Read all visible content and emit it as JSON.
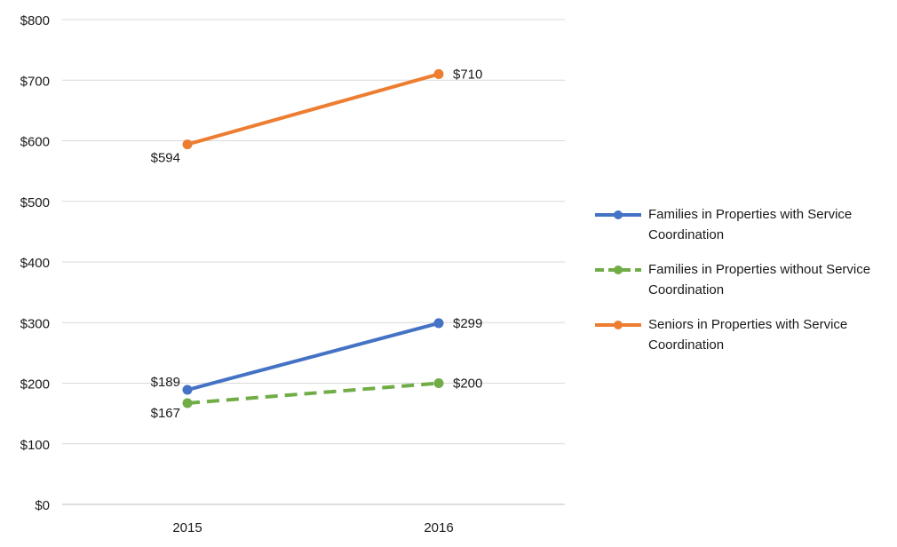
{
  "chart_data": {
    "type": "line",
    "categories": [
      "2015",
      "2016"
    ],
    "ylim": [
      0,
      800
    ],
    "yticks": [
      0,
      100,
      200,
      300,
      400,
      500,
      600,
      700,
      800
    ],
    "ytick_labels": [
      "$0",
      "$100",
      "$200",
      "$300",
      "$400",
      "$500",
      "$600",
      "$700",
      "$800"
    ],
    "grid": true,
    "legend_position": "right",
    "series": [
      {
        "name": "Families in Properties with Service Coordination",
        "values": [
          189,
          299
        ],
        "labels": [
          "$189",
          "$299"
        ],
        "color": "#4472c4",
        "dashed": false
      },
      {
        "name": "Families in Properties without Service Coordination",
        "values": [
          167,
          200
        ],
        "labels": [
          "$167",
          "$200"
        ],
        "color": "#70ad47",
        "dashed": true
      },
      {
        "name": "Seniors in Properties with Service Coordination",
        "values": [
          594,
          710
        ],
        "labels": [
          "$594",
          "$710"
        ],
        "color": "#ed7d31",
        "dashed": false
      }
    ]
  }
}
